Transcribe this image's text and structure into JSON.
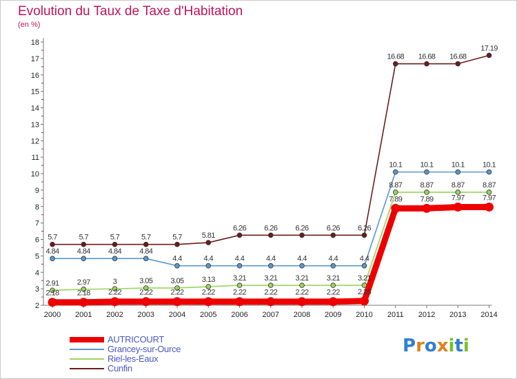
{
  "chart_data": {
    "type": "line",
    "title": "Evolution du Taux de Taxe d'Habitation",
    "subtitle": "(en %)",
    "x": [
      "2000",
      "2001",
      "2002",
      "2003",
      "2004",
      "2005",
      "2006",
      "2007",
      "2008",
      "2009",
      "2010",
      "2011",
      "2012",
      "2013",
      "2014"
    ],
    "yticks": [
      "2",
      "3",
      "4",
      "5",
      "6",
      "7",
      "8",
      "9",
      "10",
      "11",
      "12",
      "13",
      "14",
      "15",
      "16",
      "17",
      "18"
    ],
    "ylim": [
      2,
      18
    ],
    "grid": false,
    "legend_position": "bottom-left",
    "series": [
      {
        "name": "Cunfin",
        "color": "#6b1b1b",
        "values": [
          5.7,
          5.7,
          5.7,
          5.7,
          5.7,
          5.81,
          6.26,
          6.26,
          6.26,
          6.26,
          6.26,
          16.68,
          16.68,
          16.68,
          17.19
        ],
        "labels": [
          "5.7",
          "5.7",
          "5.7",
          "5.7",
          "5.7",
          "5.81",
          "6.26",
          "6.26",
          "6.26",
          "6.26",
          "6.26",
          "16.68",
          "16.68",
          "16.68",
          "17.19"
        ]
      },
      {
        "name": "Grancey-sur-Ource",
        "color": "#5a97cc",
        "values": [
          4.84,
          4.84,
          4.84,
          4.84,
          4.4,
          4.4,
          4.4,
          4.4,
          4.4,
          4.4,
          4.4,
          10.1,
          10.1,
          10.1,
          10.1
        ],
        "labels": [
          "4.84",
          "4.84",
          "4.84",
          "4.84",
          "4.4",
          "4.4",
          "4.4",
          "4.4",
          "4.4",
          "4.4",
          "4.4",
          "10.1",
          "10.1",
          "10.1",
          "10.1"
        ]
      },
      {
        "name": "Riel-les-Eaux",
        "color": "#99d35c",
        "values": [
          2.91,
          2.97,
          3,
          3.05,
          3.05,
          3.13,
          3.21,
          3.21,
          3.21,
          3.21,
          3.21,
          8.87,
          8.87,
          8.87,
          8.87
        ],
        "labels": [
          "2.91",
          "2.97",
          "3",
          "3.05",
          "3.05",
          "3.13",
          "3.21",
          "3.21",
          "3.21",
          "3.21",
          "3.21",
          "8.87",
          "8.87",
          "8.87",
          "8.87"
        ]
      },
      {
        "name": "AUTRICOURT",
        "color": "#ee0000",
        "values": [
          2.18,
          2.18,
          2.22,
          2.22,
          2.22,
          2.22,
          2.22,
          2.22,
          2.22,
          2.22,
          2.26,
          7.89,
          7.89,
          7.97,
          7.97
        ],
        "labels": [
          "2.18",
          "2.18",
          "2.22",
          "2.22",
          "2.22",
          "2.22",
          "2.22",
          "2.22",
          "2.22",
          "2.22",
          "2.26",
          "7.89",
          "7.89",
          "7.97",
          "7.97"
        ]
      }
    ]
  },
  "legend": [
    {
      "label": "AUTRICOURT",
      "color": "#ee0000"
    },
    {
      "label": "Grancey-sur-Ource",
      "color": "#5a97cc"
    },
    {
      "label": "Riel-les-Eaux",
      "color": "#99d35c"
    },
    {
      "label": "Cunfin",
      "color": "#6b1b1b"
    }
  ],
  "brand": {
    "name": "Proxiti",
    "letters": [
      {
        "ch": "P",
        "color": "#2f7fd1"
      },
      {
        "ch": "r",
        "color": "#e0801e"
      },
      {
        "ch": "o",
        "color": "#2f7fd1"
      },
      {
        "ch": "x",
        "color": "#e0801e"
      },
      {
        "ch": "i",
        "color": "#7cbf2a"
      },
      {
        "ch": "t",
        "color": "#2f7fd1"
      },
      {
        "ch": "i",
        "color": "#7cbf2a"
      }
    ]
  }
}
